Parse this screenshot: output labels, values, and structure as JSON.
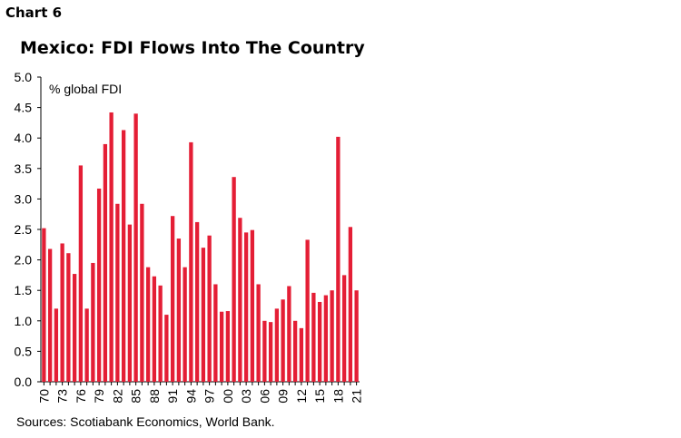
{
  "header": {
    "label": "Chart 6",
    "title": "Mexico: FDI Flows Into The Country"
  },
  "footer": {
    "source": "Sources: Scotiabank Economics, World Bank."
  },
  "colors": {
    "bar": "#e41e35",
    "axis": "#000000"
  },
  "chart_data": {
    "type": "bar",
    "title": "Mexico: FDI Flows Into The Country",
    "ylabel": "% global FDI",
    "xlabel": "",
    "ylim": [
      0,
      5
    ],
    "yticks": [
      "0.0",
      "0.5",
      "1.0",
      "1.5",
      "2.0",
      "2.5",
      "3.0",
      "3.5",
      "4.0",
      "4.5",
      "5.0"
    ],
    "xtick_labels": [
      "70",
      "73",
      "76",
      "79",
      "82",
      "85",
      "88",
      "91",
      "94",
      "97",
      "00",
      "03",
      "06",
      "09",
      "12",
      "15",
      "18",
      "21"
    ],
    "grid": false,
    "legend": "none",
    "categories": [
      "1970",
      "1971",
      "1972",
      "1973",
      "1974",
      "1975",
      "1976",
      "1977",
      "1978",
      "1979",
      "1980",
      "1981",
      "1982",
      "1983",
      "1984",
      "1985",
      "1986",
      "1987",
      "1988",
      "1989",
      "1990",
      "1991",
      "1992",
      "1993",
      "1994",
      "1995",
      "1996",
      "1997",
      "1998",
      "1999",
      "2000",
      "2001",
      "2002",
      "2003",
      "2004",
      "2005",
      "2006",
      "2007",
      "2008",
      "2009",
      "2010",
      "2011",
      "2012",
      "2013",
      "2014",
      "2015",
      "2016",
      "2017",
      "2018",
      "2019",
      "2020",
      "2021"
    ],
    "values": [
      2.52,
      2.18,
      1.2,
      2.27,
      2.11,
      1.77,
      3.55,
      1.2,
      1.95,
      3.17,
      3.9,
      4.42,
      2.92,
      4.13,
      2.58,
      4.4,
      2.92,
      1.88,
      1.73,
      1.58,
      1.1,
      2.72,
      2.35,
      1.88,
      3.93,
      2.62,
      2.2,
      2.4,
      1.6,
      1.15,
      1.16,
      3.36,
      2.69,
      2.45,
      2.49,
      1.6,
      1.0,
      0.98,
      1.2,
      1.35,
      1.57,
      1.0,
      0.88,
      2.33,
      1.46,
      1.31,
      1.42,
      1.5,
      4.02,
      1.75,
      2.54,
      1.5
    ]
  }
}
